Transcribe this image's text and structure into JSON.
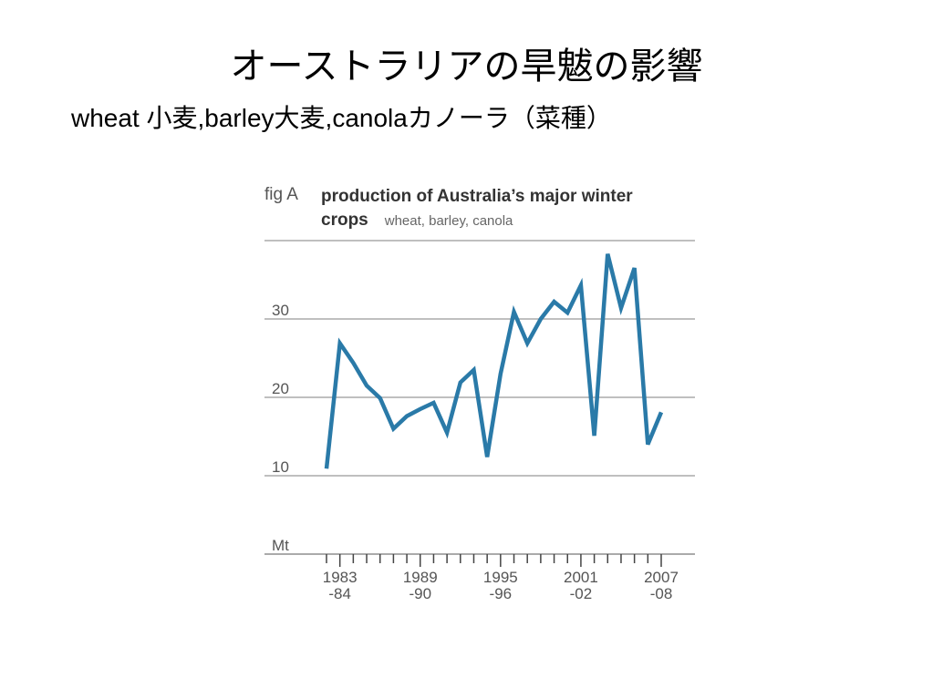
{
  "header": {
    "title": "オーストラリアの旱魃の影響",
    "subtitle": "wheat 小麦,barley大麦,canolaカノーラ（菜種）"
  },
  "chart_data": {
    "type": "line",
    "figure_label": "fig A",
    "title": "production of Australia’s major winter crops",
    "subtitle": "wheat, barley, canola",
    "y_label": "Mt",
    "categories": [
      null,
      "1983\n-84",
      null,
      null,
      null,
      null,
      null,
      "1989\n-90",
      null,
      null,
      null,
      null,
      null,
      "1995\n-96",
      null,
      null,
      null,
      null,
      null,
      "2001\n-02",
      null,
      null,
      null,
      null,
      null,
      "2007\n-08"
    ],
    "values": [
      10.9,
      26.9,
      24.4,
      21.5,
      19.9,
      16.0,
      17.6,
      18.5,
      19.3,
      15.5,
      21.9,
      23.5,
      12.4,
      23.0,
      30.9,
      26.9,
      30.0,
      32.2,
      30.8,
      34.3,
      15.1,
      38.3,
      31.4,
      36.5,
      14.0,
      18.1
    ],
    "color": "#2a7aa8",
    "ylim": [
      0,
      40
    ],
    "yticks": [
      10,
      20,
      30
    ],
    "grid": true
  }
}
